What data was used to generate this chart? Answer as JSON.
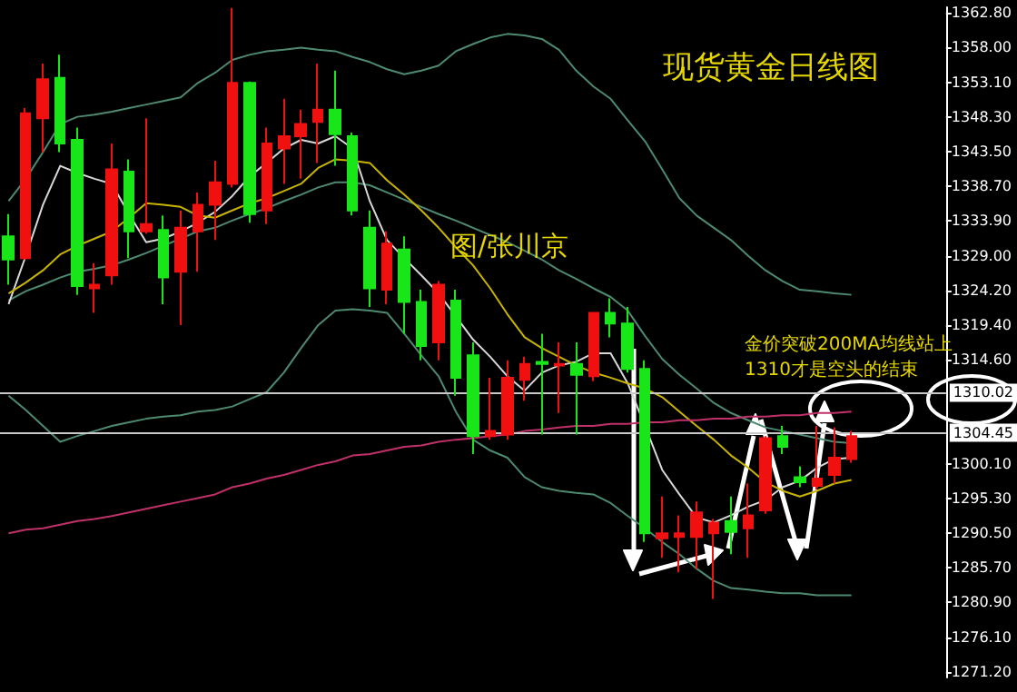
{
  "chart_data": {
    "type": "candlestick",
    "title": "现货黄金日线图",
    "annotations": [
      "图/张川京",
      "金价突破200MA均线站上\n1310才是空头的结束"
    ],
    "categories": [
      null,
      null,
      null,
      null,
      null,
      null,
      null,
      null,
      null,
      null,
      null,
      null,
      null,
      null,
      null,
      null,
      null,
      null,
      null,
      null,
      null,
      null,
      null,
      null,
      null,
      null,
      null,
      null,
      null,
      null,
      null,
      null,
      null,
      null,
      null,
      null,
      null,
      null,
      null,
      null,
      null,
      null,
      null,
      null,
      null,
      null,
      null,
      null,
      null,
      null,
      null,
      null,
      null,
      null,
      null
    ],
    "ohlc": [
      [
        1331.7,
        1334.8,
        1325.0,
        1328.5
      ],
      [
        1328.7,
        1349.5,
        1328.5,
        1348.8
      ],
      [
        1348.1,
        1355.7,
        1343.4,
        1353.5
      ],
      [
        1353.7,
        1356.9,
        1343.4,
        1344.6
      ],
      [
        1345.1,
        1346.8,
        1323.6,
        1324.8
      ],
      [
        1324.5,
        1328.0,
        1321.1,
        1325.0
      ],
      [
        1326.3,
        1344.6,
        1325.0,
        1341.0
      ],
      [
        1340.7,
        1342.4,
        1328.7,
        1332.4
      ],
      [
        1332.4,
        1348.1,
        1332.1,
        1333.4
      ],
      [
        1332.6,
        1334.6,
        1322.3,
        1326.0
      ],
      [
        1326.8,
        1335.3,
        1319.4,
        1332.9
      ],
      [
        1332.4,
        1337.8,
        1326.8,
        1336.1
      ],
      [
        1336.1,
        1342.2,
        1331.2,
        1339.2
      ],
      [
        1339.0,
        1363.4,
        1338.5,
        1353.0
      ],
      [
        1353.0,
        1353.2,
        1333.6,
        1334.8
      ],
      [
        1335.3,
        1346.8,
        1333.4,
        1344.6
      ],
      [
        1343.9,
        1350.8,
        1339.0,
        1345.6
      ],
      [
        1345.6,
        1349.3,
        1339.7,
        1347.3
      ],
      [
        1347.6,
        1355.7,
        1341.9,
        1349.3
      ],
      [
        1349.3,
        1354.7,
        1341.5,
        1345.9
      ],
      [
        1345.6,
        1346.1,
        1334.6,
        1335.3
      ],
      [
        1332.9,
        1335.3,
        1321.9,
        1324.5
      ],
      [
        1324.3,
        1332.4,
        1322.3,
        1330.7
      ],
      [
        1329.9,
        1331.7,
        1318.2,
        1322.6
      ],
      [
        1322.6,
        1324.3,
        1314.5,
        1316.5
      ],
      [
        1317.0,
        1325.5,
        1314.5,
        1325.0
      ],
      [
        1322.8,
        1324.3,
        1309.6,
        1312.1
      ],
      [
        1315.2,
        1317.0,
        1301.5,
        1304.0
      ],
      [
        1304.0,
        1312.1,
        1303.5,
        1304.7
      ],
      [
        1304.2,
        1314.5,
        1303.5,
        1312.1
      ],
      [
        1311.8,
        1315.0,
        1308.9,
        1314.0
      ],
      [
        1314.3,
        1318.2,
        1304.2,
        1314.0
      ],
      [
        1313.8,
        1317.0,
        1307.2,
        1314.0
      ],
      [
        1314.0,
        1317.0,
        1304.2,
        1312.5
      ],
      [
        1312.3,
        1321.1,
        1311.6,
        1321.1
      ],
      [
        1321.1,
        1323.1,
        1317.7,
        1319.6
      ],
      [
        1319.6,
        1321.9,
        1312.8,
        1313.3
      ],
      [
        1313.3,
        1314.5,
        1289.3,
        1290.5
      ],
      [
        1289.8,
        1295.6,
        1287.1,
        1290.5
      ],
      [
        1290.0,
        1293.0,
        1285.1,
        1290.5
      ],
      [
        1290.0,
        1294.9,
        1285.6,
        1293.4
      ],
      [
        1290.5,
        1292.5,
        1281.4,
        1292.0
      ],
      [
        1292.2,
        1295.6,
        1287.6,
        1290.7
      ],
      [
        1291.2,
        1297.4,
        1287.1,
        1293.0
      ],
      [
        1293.7,
        1304.0,
        1293.2,
        1303.7
      ],
      [
        1304.0,
        1305.4,
        1301.5,
        1302.5
      ],
      [
        1298.3,
        1299.8,
        1296.9,
        1297.6
      ],
      [
        1297.1,
        1305.4,
        1296.6,
        1298.1
      ],
      [
        1298.6,
        1305.2,
        1297.4,
        1301.0
      ],
      [
        1300.8,
        1304.7,
        1300.3,
        1304.0
      ],
      null,
      null,
      null,
      null,
      null
    ],
    "colors": [
      "#19e619",
      "#f01010",
      "#f01010",
      "#19e619",
      "#19e619",
      "#f01010",
      "#f01010",
      "#19e619",
      "#f01010",
      "#19e619",
      "#f01010",
      "#f01010",
      "#f01010",
      "#f01010",
      "#19e619",
      "#f01010",
      "#f01010",
      "#f01010",
      "#f01010",
      "#19e619",
      "#19e619",
      "#19e619",
      "#f01010",
      "#19e619",
      "#19e619",
      "#f01010",
      "#19e619",
      "#19e619",
      "#f01010",
      "#f01010",
      "#f01010",
      "#19e619",
      "#f01010",
      "#19e619",
      "#f01010",
      "#19e619",
      "#19e619",
      "#19e619",
      "#f01010",
      "#f01010",
      "#f01010",
      "#f01010",
      "#19e619",
      "#f01010",
      "#f01010",
      "#19e619",
      "#19e619",
      "#f01010",
      "#f01010",
      "#f01010",
      null,
      null,
      null,
      null,
      null
    ],
    "series": [
      {
        "type": "line",
        "color": "#4d8a70",
        "values": [
          1336.6,
          1339.7,
          1343.4,
          1347.3,
          1348.3,
          1348.6,
          1349.0,
          1349.5,
          1350.0,
          1350.5,
          1351.0,
          1353.0,
          1354.4,
          1356.2,
          1356.9,
          1357.4,
          1357.6,
          1357.9,
          1357.6,
          1357.4,
          1356.6,
          1355.9,
          1354.9,
          1354.2,
          1354.7,
          1355.4,
          1357.4,
          1358.4,
          1359.3,
          1359.8,
          1359.6,
          1359.1,
          1357.6,
          1354.7,
          1352.5,
          1350.8,
          1347.8,
          1344.9,
          1341.0,
          1337.0,
          1334.6,
          1332.9,
          1331.2,
          1329.0,
          1327.0,
          1325.5,
          1324.3,
          1324.1,
          1323.8,
          1323.6,
          null,
          null,
          null,
          null,
          null
        ]
      },
      {
        "type": "line",
        "color": "#4d8a70",
        "values": [
          1322.8,
          1324.1,
          1325.0,
          1326.0,
          1326.8,
          1327.2,
          1327.7,
          1328.5,
          1329.4,
          1330.4,
          1331.4,
          1332.4,
          1332.9,
          1333.9,
          1334.8,
          1335.6,
          1336.6,
          1337.5,
          1338.5,
          1339.2,
          1339.2,
          1338.8,
          1337.8,
          1336.8,
          1335.8,
          1334.8,
          1333.9,
          1332.9,
          1331.9,
          1330.9,
          1329.7,
          1328.5,
          1327.0,
          1325.8,
          1324.5,
          1323.3,
          1321.4,
          1317.9,
          1314.7,
          1312.5,
          1310.6,
          1308.6,
          1307.2,
          1306.2,
          1305.2,
          1304.7,
          1304.2,
          1303.7,
          1303.2,
          1303.0,
          null,
          null,
          null,
          null,
          null
        ]
      },
      {
        "type": "line",
        "color": "#4d8a70",
        "values": [
          1309.6,
          1307.6,
          1305.4,
          1303.2,
          1304.0,
          1304.7,
          1305.4,
          1305.9,
          1306.4,
          1306.7,
          1306.9,
          1307.4,
          1307.6,
          1308.1,
          1309.1,
          1310.1,
          1312.8,
          1316.2,
          1319.4,
          1321.4,
          1321.6,
          1321.4,
          1321.1,
          1318.2,
          1315.2,
          1312.3,
          1307.4,
          1303.5,
          1302.0,
          1301.0,
          1298.3,
          1296.9,
          1296.4,
          1296.1,
          1295.9,
          1294.7,
          1292.9,
          1291.2,
          1289.3,
          1287.6,
          1285.6,
          1283.9,
          1282.9,
          1282.7,
          1282.4,
          1282.2,
          1282.2,
          1281.9,
          1281.9,
          1281.9,
          null,
          null,
          null,
          null,
          null
        ]
      },
      {
        "type": "line",
        "color": "#d8d8d8",
        "values": [
          1322.3,
          1329.0,
          1336.1,
          1341.5,
          1340.5,
          1339.7,
          1339.0,
          1334.8,
          1330.9,
          1331.4,
          1332.4,
          1333.6,
          1335.1,
          1337.3,
          1340.0,
          1341.9,
          1343.9,
          1345.1,
          1344.6,
          1345.6,
          1343.9,
          1336.6,
          1331.2,
          1328.7,
          1326.3,
          1323.8,
          1320.6,
          1317.4,
          1315.0,
          1312.3,
          1310.3,
          1312.8,
          1313.8,
          1314.3,
          1315.5,
          1315.5,
          1311.3,
          1305.4,
          1299.3,
          1295.9,
          1292.7,
          1292.0,
          1293.0,
          1294.2,
          1295.1,
          1296.9,
          1297.8,
          1299.6,
          1300.8,
          1301.0,
          null,
          null,
          null,
          null,
          null
        ]
      },
      {
        "type": "line",
        "color": "#c8b400",
        "values": [
          1323.8,
          1325.3,
          1327.0,
          1329.2,
          1330.4,
          1331.4,
          1332.4,
          1334.3,
          1336.3,
          1336.1,
          1335.8,
          1334.6,
          1334.3,
          1335.3,
          1336.3,
          1337.0,
          1338.0,
          1339.0,
          1341.2,
          1342.4,
          1342.2,
          1341.9,
          1339.5,
          1337.5,
          1335.3,
          1332.9,
          1330.2,
          1327.7,
          1324.5,
          1320.9,
          1317.7,
          1316.2,
          1315.0,
          1313.8,
          1312.8,
          1312.1,
          1311.3,
          1310.6,
          1309.4,
          1307.4,
          1305.4,
          1303.5,
          1301.3,
          1299.6,
          1297.6,
          1296.4,
          1295.6,
          1296.4,
          1297.4,
          1297.9,
          null,
          null,
          null,
          null,
          null
        ]
      },
      {
        "type": "line",
        "color": "#c0306a",
        "values": [
          1290.5,
          1291.0,
          1291.2,
          1291.7,
          1292.2,
          1292.5,
          1292.9,
          1293.4,
          1293.9,
          1294.4,
          1294.9,
          1295.4,
          1295.9,
          1296.9,
          1297.4,
          1298.1,
          1298.6,
          1299.3,
          1300.0,
          1300.5,
          1301.3,
          1301.5,
          1302.0,
          1302.5,
          1302.7,
          1303.2,
          1303.5,
          1303.7,
          1304.0,
          1304.2,
          1304.7,
          1304.9,
          1305.2,
          1305.4,
          1305.4,
          1305.7,
          1305.7,
          1305.9,
          1305.9,
          1306.2,
          1306.2,
          1306.4,
          1306.4,
          1306.7,
          1306.7,
          1306.9,
          1306.9,
          1307.2,
          1307.2,
          1307.4,
          null,
          null,
          null,
          null,
          null
        ]
      }
    ],
    "ylim": [
      1270.5,
      1363.5
    ],
    "yticks": [
      {
        "value": 1362.8,
        "label": "1362.80"
      },
      {
        "value": 1358.0,
        "label": "1358.00"
      },
      {
        "value": 1353.1,
        "label": "1353.10"
      },
      {
        "value": 1348.3,
        "label": "1348.30"
      },
      {
        "value": 1343.5,
        "label": "1343.50"
      },
      {
        "value": 1338.7,
        "label": "1338.70"
      },
      {
        "value": 1333.9,
        "label": "1333.90"
      },
      {
        "value": 1329.0,
        "label": "1329.00"
      },
      {
        "value": 1324.2,
        "label": "1324.20"
      },
      {
        "value": 1319.4,
        "label": "1319.40"
      },
      {
        "value": 1314.6,
        "label": "1314.60"
      },
      {
        "value": 1300.1,
        "label": "1300.10"
      },
      {
        "value": 1295.3,
        "label": "1295.30"
      },
      {
        "value": 1290.5,
        "label": "1290.50"
      },
      {
        "value": 1285.7,
        "label": "1285.70"
      },
      {
        "value": 1280.9,
        "label": "1280.90"
      },
      {
        "value": 1276.1,
        "label": "1276.10"
      },
      {
        "value": 1271.2,
        "label": "1271.20"
      }
    ],
    "ref_lines": [
      {
        "axis": "y",
        "value": 1310.02,
        "label": "1310.02",
        "color": "#c8c8c8"
      },
      {
        "axis": "y",
        "value": 1304.45,
        "label": "1304.45",
        "color": "#c8c8c8"
      }
    ],
    "grid": false
  }
}
